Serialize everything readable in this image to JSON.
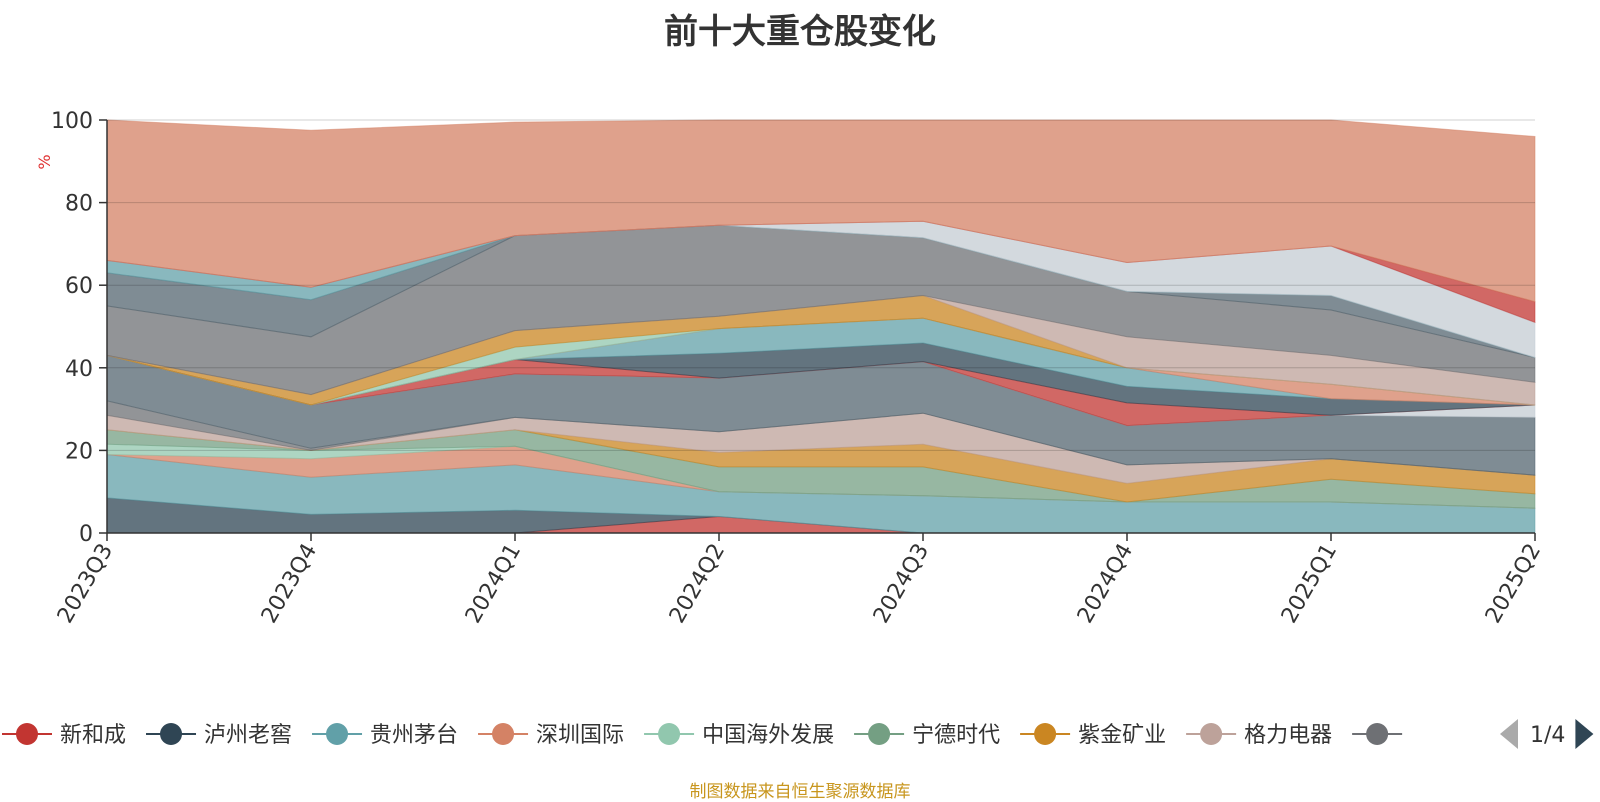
{
  "chart_data": {
    "type": "area",
    "stacked": true,
    "title": "前十大重仓股变化",
    "ylabel": "%",
    "ylim": [
      0,
      100
    ],
    "yticks": [
      "0",
      "20",
      "40",
      "60",
      "80",
      "100"
    ],
    "categories": [
      "2023Q3",
      "2023Q4",
      "2024Q1",
      "2024Q2",
      "2024Q3",
      "2024Q4",
      "2025Q1",
      "2025Q2"
    ],
    "grid": true,
    "legend_position": "bottom",
    "legend_page": "1/4",
    "series": [
      {
        "name": "新和成",
        "color": "#c23531",
        "values": [
          0,
          0,
          0,
          4,
          0,
          0,
          0,
          0
        ]
      },
      {
        "name": "泸州老窖",
        "color": "#2f4554",
        "values": [
          8.5,
          4.5,
          5.5,
          0,
          0,
          0,
          0,
          0
        ]
      },
      {
        "name": "贵州茅台",
        "color": "#61a0a8",
        "values": [
          10.5,
          9,
          11,
          6,
          9,
          7.5,
          7.5,
          6
        ]
      },
      {
        "name": "深圳国际",
        "color": "#d48265",
        "values": [
          0,
          4.5,
          4.5,
          0,
          0,
          0,
          0,
          0
        ]
      },
      {
        "name": "中国海外发展",
        "color": "#91c7ae",
        "values": [
          2.5,
          2,
          0,
          0,
          0,
          0,
          0,
          0
        ]
      },
      {
        "name": "宁德时代",
        "color": "#749f83",
        "values": [
          3.5,
          0,
          4,
          6,
          7,
          0,
          5.5,
          3.5
        ]
      },
      {
        "name": "紫金矿业",
        "color": "#ca8622",
        "values": [
          0,
          0,
          0,
          3.5,
          5.5,
          4.5,
          5,
          4.5
        ]
      },
      {
        "name": "格力电器",
        "color": "#bda29a",
        "values": [
          3.5,
          0,
          3,
          5,
          7.5,
          4.5,
          0,
          0
        ]
      },
      {
        "name": "",
        "color": "#6e7074",
        "values": [
          3.5,
          0.5,
          0,
          0,
          0,
          0,
          0,
          0
        ]
      },
      {
        "name": "",
        "color": "#546570",
        "values": [
          11,
          10.5,
          10.5,
          13,
          12.5,
          9.5,
          10.5,
          14
        ]
      },
      {
        "name": "",
        "color": "#c4ccd3",
        "values": [
          0,
          0,
          0,
          0,
          0,
          0,
          0,
          3
        ]
      },
      {
        "name": "",
        "color": "#c23531",
        "values": [
          0,
          0,
          3.5,
          0,
          0,
          5.5,
          0,
          0
        ]
      },
      {
        "name": "",
        "color": "#2f4554",
        "values": [
          0,
          0,
          0,
          6,
          4.5,
          4,
          4,
          0
        ]
      },
      {
        "name": "",
        "color": "#61a0a8",
        "values": [
          0,
          0,
          0,
          6,
          6,
          4.5,
          0,
          0
        ]
      },
      {
        "name": "",
        "color": "#d48265",
        "values": [
          0,
          0,
          0,
          0,
          0,
          0,
          3.5,
          0
        ]
      },
      {
        "name": "",
        "color": "#91c7ae",
        "values": [
          0,
          0,
          3,
          0,
          0,
          0,
          0,
          0
        ]
      },
      {
        "name": "",
        "color": "#ca8622",
        "values": [
          0,
          2.5,
          4,
          3,
          5.5,
          0,
          0,
          0
        ]
      },
      {
        "name": "",
        "color": "#bda29a",
        "values": [
          0,
          0,
          0,
          0,
          0,
          7.5,
          7,
          5.5
        ]
      },
      {
        "name": "",
        "color": "#6e7074",
        "values": [
          12,
          14,
          23,
          22,
          14,
          11,
          11,
          6
        ]
      },
      {
        "name": "",
        "color": "#546570",
        "values": [
          8,
          9,
          0,
          0,
          0,
          0,
          3.5,
          0
        ]
      },
      {
        "name": "",
        "color": "#61a0a8",
        "values": [
          3,
          3,
          0,
          0,
          0,
          0,
          0,
          0
        ]
      },
      {
        "name": "",
        "color": "#c4ccd3",
        "values": [
          0,
          0,
          0,
          0,
          4,
          7,
          12,
          8.5
        ]
      },
      {
        "name": "",
        "color": "#c23531",
        "values": [
          0,
          0,
          0,
          0,
          0,
          0,
          0,
          5
        ]
      },
      {
        "name": "",
        "color": "#d48265",
        "values": [
          34,
          38,
          27.5,
          25.5,
          24.5,
          34.5,
          30.5,
          40
        ]
      }
    ]
  },
  "source_note": "制图数据来自恒生聚源数据库"
}
